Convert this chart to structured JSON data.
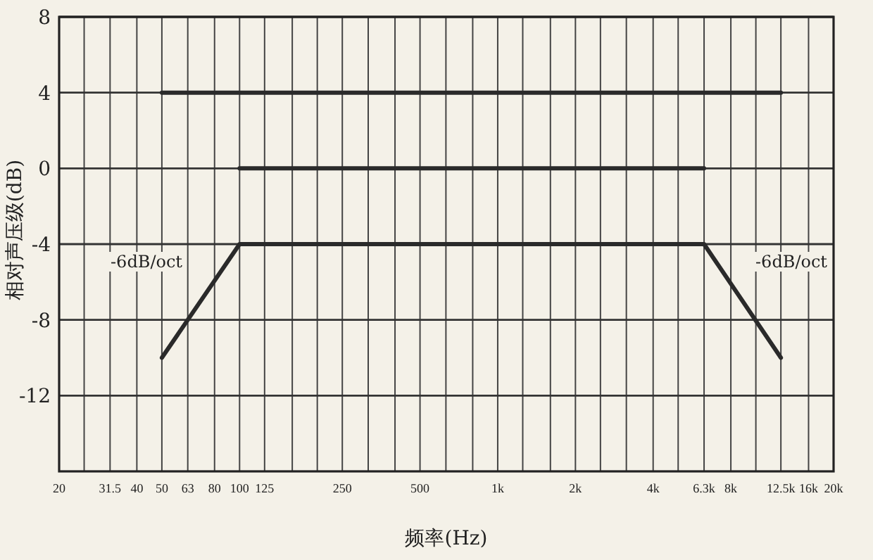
{
  "chart_data": {
    "type": "line",
    "xlabel": "频率(Hz)",
    "ylabel": "相对声压级(dB)",
    "log": "x",
    "grid": true,
    "marker": "none",
    "line_style": "solid",
    "xlim": [
      20,
      20000
    ],
    "ylim": [
      -16,
      8
    ],
    "yticks": [
      -12,
      -8,
      -4,
      0,
      4,
      8
    ],
    "xticks": [
      20,
      {
        "value": 25,
        "label": null
      },
      {
        "value": 31.5,
        "label": "31.5"
      },
      40,
      50,
      63,
      80,
      100,
      125,
      {
        "value": 160,
        "label": null
      },
      {
        "value": 200,
        "label": null
      },
      250,
      {
        "value": 315,
        "label": null
      },
      {
        "value": 400,
        "label": null
      },
      500,
      {
        "value": 630,
        "label": null
      },
      {
        "value": 800,
        "label": null
      },
      {
        "value": 1000,
        "label": "1k"
      },
      {
        "value": 1250,
        "label": null
      },
      {
        "value": 1600,
        "label": null
      },
      {
        "value": 2000,
        "label": "2k"
      },
      {
        "value": 2500,
        "label": null
      },
      {
        "value": 3150,
        "label": null
      },
      {
        "value": 4000,
        "label": "4k"
      },
      {
        "value": 5000,
        "label": null
      },
      {
        "value": 6300,
        "label": "6.3k"
      },
      {
        "value": 8000,
        "label": "8k"
      },
      {
        "value": 10000,
        "label": null
      },
      {
        "value": 12500,
        "label": "12.5k"
      },
      {
        "value": 16000,
        "label": "16k"
      },
      {
        "value": 20000,
        "label": "20k"
      }
    ],
    "series": [
      {
        "color": "#2a2a2a",
        "x": [
          50,
          12500
        ],
        "values": [
          4,
          4
        ]
      },
      {
        "color": "#2a2a2a",
        "x": [
          100,
          6300
        ],
        "values": [
          0,
          0
        ]
      },
      {
        "color": "#2a2a2a",
        "x": [
          50,
          100,
          6300,
          12500
        ],
        "values": [
          -10,
          -4,
          -4,
          -10
        ]
      }
    ],
    "annotations": [
      "-6dB/oct",
      "-6dB/oct"
    ]
  }
}
